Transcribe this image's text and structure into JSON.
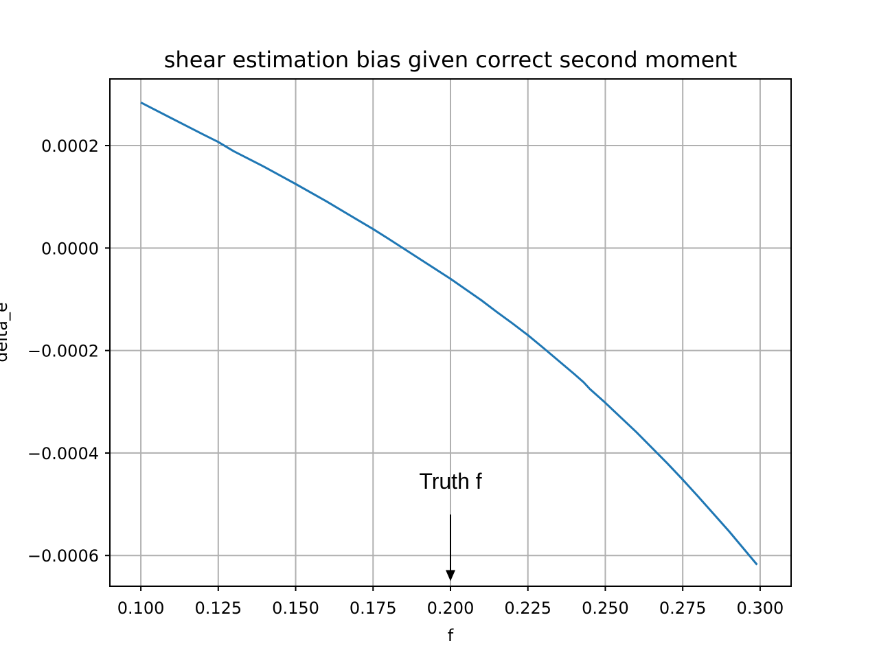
{
  "chart_data": {
    "type": "line",
    "title": "shear estimation bias given correct second moment",
    "xlabel": "f",
    "ylabel": "delta_e",
    "xlim": [
      0.09,
      0.31
    ],
    "ylim": [
      -0.00066,
      0.00033
    ],
    "grid": true,
    "x_ticks": [
      0.1,
      0.125,
      0.15,
      0.175,
      0.2,
      0.225,
      0.25,
      0.275,
      0.3
    ],
    "x_tick_labels": [
      "0.100",
      "0.125",
      "0.150",
      "0.175",
      "0.200",
      "0.225",
      "0.250",
      "0.275",
      "0.300"
    ],
    "y_ticks": [
      0.0002,
      0.0,
      -0.0002,
      -0.0004,
      -0.0006
    ],
    "y_tick_labels": [
      "0.0002",
      "0.0000",
      "−0.0002",
      "−0.0004",
      "−0.0006"
    ],
    "series": [
      {
        "color": "#1f77b4",
        "x": [
          0.1,
          0.11,
          0.12,
          0.125,
          0.13,
          0.14,
          0.15,
          0.16,
          0.17,
          0.175,
          0.18,
          0.19,
          0.2,
          0.21,
          0.215,
          0.22,
          0.225,
          0.23,
          0.24,
          0.243,
          0.245,
          0.25,
          0.26,
          0.27,
          0.275,
          0.28,
          0.29,
          0.299
        ],
        "y": [
          0.000284,
          0.000253,
          0.000222,
          0.000207,
          0.000189,
          0.000158,
          0.000125,
          9.1e-05,
          5.5e-05,
          3.7e-05,
          1.8e-05,
          -2.1e-05,
          -6e-05,
          -0.000102,
          -0.000125,
          -0.000147,
          -0.00017,
          -0.000195,
          -0.000246,
          -0.000262,
          -0.000275,
          -0.000302,
          -0.000359,
          -0.00042,
          -0.000452,
          -0.000485,
          -0.000553,
          -0.000618
        ]
      }
    ],
    "annotations": [
      {
        "text": "Truth f",
        "x": 0.2,
        "text_y": -0.00047,
        "arrow_from_y": -0.00052,
        "arrow_to_y": -0.00065
      }
    ]
  }
}
